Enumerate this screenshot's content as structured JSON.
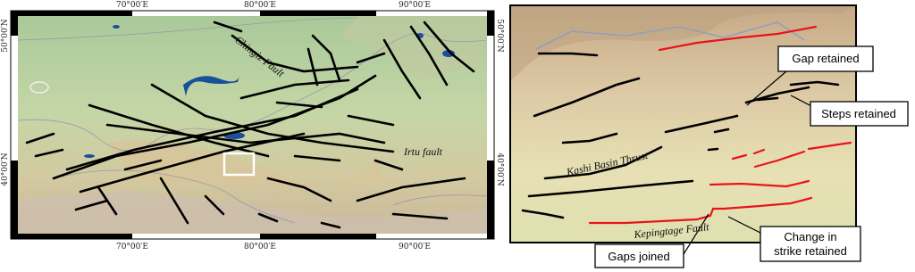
{
  "left_map": {
    "top_axis": [
      "70°00′E",
      "80°00′E",
      "90°00′E"
    ],
    "bottom_axis": [
      "70°00′E",
      "80°00′E",
      "90°00′E"
    ],
    "left_axis": [
      "50°00′N",
      "40°00′N"
    ],
    "right_axis": [
      "50°00′N",
      "40°00′N"
    ],
    "fault_labels": [
      "Chingiz Fault",
      "Irtu fault"
    ]
  },
  "right_map": {
    "fault_labels": [
      "Kashi Basin Thrust",
      "Kepingtage Fault"
    ],
    "callouts": {
      "gap_retained": [
        "Gap retained"
      ],
      "steps_retained": [
        "Steps retained"
      ],
      "change_in_strike": [
        "Change in",
        "strike retained"
      ],
      "gaps_joined": [
        "Gaps joined"
      ]
    }
  }
}
